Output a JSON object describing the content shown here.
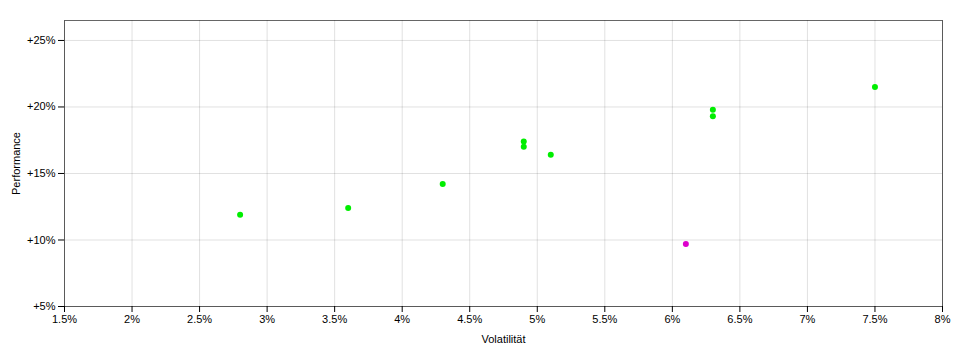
{
  "chart_data": {
    "type": "scatter",
    "xlabel": "Volatilität",
    "ylabel": "Performance",
    "series": [
      {
        "color": "#00ee00",
        "marker": "circle",
        "x": [
          0.028,
          0.036,
          0.043,
          0.049,
          0.049,
          0.051,
          0.063,
          0.063,
          0.075
        ],
        "values": [
          0.119,
          0.124,
          0.142,
          0.17,
          0.174,
          0.164,
          0.193,
          0.198,
          0.215
        ]
      },
      {
        "color": "#dd00cc",
        "marker": "circle",
        "x": [
          0.061
        ],
        "values": [
          0.097
        ]
      }
    ],
    "xlim": [
      0.015,
      0.08
    ],
    "ylim": [
      0.05,
      0.265
    ],
    "xticks": [
      {
        "value": 0.015,
        "label": "1.5%"
      },
      {
        "value": 0.02,
        "label": "2%"
      },
      {
        "value": 0.025,
        "label": "2.5%"
      },
      {
        "value": 0.03,
        "label": "3%"
      },
      {
        "value": 0.035,
        "label": "3.5%"
      },
      {
        "value": 0.04,
        "label": "4%"
      },
      {
        "value": 0.045,
        "label": "4.5%"
      },
      {
        "value": 0.05,
        "label": "5%"
      },
      {
        "value": 0.055,
        "label": "5.5%"
      },
      {
        "value": 0.06,
        "label": "6%"
      },
      {
        "value": 0.065,
        "label": "6.5%"
      },
      {
        "value": 0.07,
        "label": "7%"
      },
      {
        "value": 0.075,
        "label": "7.5%"
      },
      {
        "value": 0.08,
        "label": "8%"
      }
    ],
    "yticks": [
      {
        "value": 0.05,
        "label": "+5%"
      },
      {
        "value": 0.1,
        "label": "+10%"
      },
      {
        "value": 0.15,
        "label": "+15%"
      },
      {
        "value": 0.2,
        "label": "+20%"
      },
      {
        "value": 0.25,
        "label": "+25%"
      }
    ],
    "grid": true
  }
}
